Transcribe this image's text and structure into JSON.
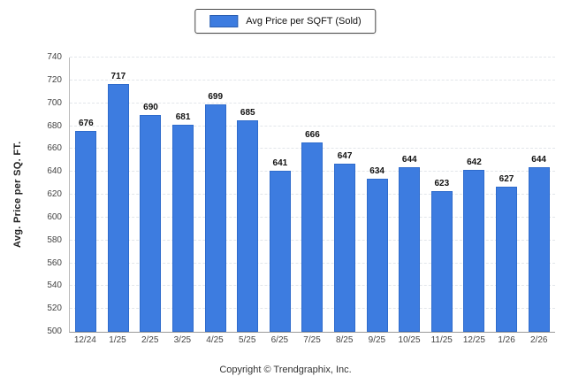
{
  "legend": {
    "label": "Avg Price per SQFT (Sold)",
    "swatch_color": "#3d7ce0"
  },
  "footer": {
    "copyright": "Copyright © Trendgraphix, Inc."
  },
  "chart_data": {
    "type": "bar",
    "title": "",
    "categories": [
      "12/24",
      "1/25",
      "2/25",
      "3/25",
      "4/25",
      "5/25",
      "6/25",
      "7/25",
      "8/25",
      "9/25",
      "10/25",
      "11/25",
      "12/25",
      "1/26",
      "2/26"
    ],
    "values": [
      676,
      717,
      690,
      681,
      699,
      685,
      641,
      666,
      647,
      634,
      644,
      623,
      642,
      627,
      644
    ],
    "series_name": "Avg Price per SQFT (Sold)",
    "xlabel": "",
    "ylabel": "Avg. Price per SQ. FT.",
    "ylim": [
      500,
      740
    ],
    "ytick_step": 20,
    "grid": true,
    "legend_position": "top",
    "bar_color": "#3d7ce0",
    "value_labels": true
  }
}
